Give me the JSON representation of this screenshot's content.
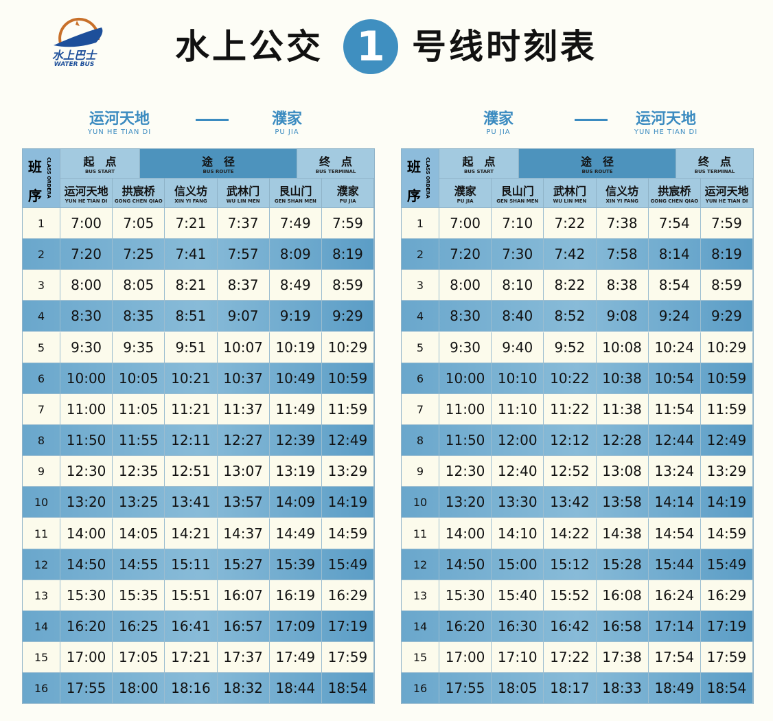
{
  "header": {
    "logo_text": "水上巴士",
    "logo_en": "WATER BUS",
    "title_left": "水上公交",
    "line_number": "1",
    "title_right": "号线时刻表"
  },
  "colors": {
    "accent": "#3f8fc0",
    "row_blue": "#6aa7cc",
    "row_cream": "#fcfbec"
  },
  "tables": [
    {
      "from": {
        "cn": "运河天地",
        "en": "YUN HE TIAN DI"
      },
      "to": {
        "cn": "濮家",
        "en": "PU JIA"
      },
      "seq_label": "班",
      "seq_label2": "序",
      "seq_en": "CLASS ORDERA",
      "start": {
        "cn": "起　点",
        "en": "BUS START"
      },
      "route": {
        "cn": "途　径",
        "en": "BUS ROUTE"
      },
      "terminal": {
        "cn": "终　点",
        "en": "BUS TERMINAL"
      },
      "stations": [
        {
          "cn": "运河天地",
          "en": "YUN HE TIAN DI"
        },
        {
          "cn": "拱宸桥",
          "en": "GONG CHEN QIAO"
        },
        {
          "cn": "信义坊",
          "en": "XIN YI FANG"
        },
        {
          "cn": "武林门",
          "en": "WU LIN MEN"
        },
        {
          "cn": "艮山门",
          "en": "GEN SHAN MEN"
        },
        {
          "cn": "濮家",
          "en": "PU JIA"
        }
      ],
      "rows": [
        [
          "1",
          "7:00",
          "7:05",
          "7:21",
          "7:37",
          "7:49",
          "7:59"
        ],
        [
          "2",
          "7:20",
          "7:25",
          "7:41",
          "7:57",
          "8:09",
          "8:19"
        ],
        [
          "3",
          "8:00",
          "8:05",
          "8:21",
          "8:37",
          "8:49",
          "8:59"
        ],
        [
          "4",
          "8:30",
          "8:35",
          "8:51",
          "9:07",
          "9:19",
          "9:29"
        ],
        [
          "5",
          "9:30",
          "9:35",
          "9:51",
          "10:07",
          "10:19",
          "10:29"
        ],
        [
          "6",
          "10:00",
          "10:05",
          "10:21",
          "10:37",
          "10:49",
          "10:59"
        ],
        [
          "7",
          "11:00",
          "11:05",
          "11:21",
          "11:37",
          "11:49",
          "11:59"
        ],
        [
          "8",
          "11:50",
          "11:55",
          "12:11",
          "12:27",
          "12:39",
          "12:49"
        ],
        [
          "9",
          "12:30",
          "12:35",
          "12:51",
          "13:07",
          "13:19",
          "13:29"
        ],
        [
          "10",
          "13:20",
          "13:25",
          "13:41",
          "13:57",
          "14:09",
          "14:19"
        ],
        [
          "11",
          "14:00",
          "14:05",
          "14:21",
          "14:37",
          "14:49",
          "14:59"
        ],
        [
          "12",
          "14:50",
          "14:55",
          "15:11",
          "15:27",
          "15:39",
          "15:49"
        ],
        [
          "13",
          "15:30",
          "15:35",
          "15:51",
          "16:07",
          "16:19",
          "16:29"
        ],
        [
          "14",
          "16:20",
          "16:25",
          "16:41",
          "16:57",
          "17:09",
          "17:19"
        ],
        [
          "15",
          "17:00",
          "17:05",
          "17:21",
          "17:37",
          "17:49",
          "17:59"
        ],
        [
          "16",
          "17:55",
          "18:00",
          "18:16",
          "18:32",
          "18:44",
          "18:54"
        ]
      ]
    },
    {
      "from": {
        "cn": "濮家",
        "en": "PU JIA"
      },
      "to": {
        "cn": "运河天地",
        "en": "YUN HE TIAN DI"
      },
      "seq_label": "班",
      "seq_label2": "序",
      "seq_en": "CLASS ORDERA",
      "start": {
        "cn": "起　点",
        "en": "BUS START"
      },
      "route": {
        "cn": "途　径",
        "en": "BUS ROUTE"
      },
      "terminal": {
        "cn": "终　点",
        "en": "BUS TERMINAL"
      },
      "stations": [
        {
          "cn": "濮家",
          "en": "PU JIA"
        },
        {
          "cn": "艮山门",
          "en": "GEN SHAN MEN"
        },
        {
          "cn": "武林门",
          "en": "WU LIN MEN"
        },
        {
          "cn": "信义坊",
          "en": "XIN YI FANG"
        },
        {
          "cn": "拱宸桥",
          "en": "GONG CHEN QIAO"
        },
        {
          "cn": "运河天地",
          "en": "YUN HE TIAN DI"
        }
      ],
      "rows": [
        [
          "1",
          "7:00",
          "7:10",
          "7:22",
          "7:38",
          "7:54",
          "7:59"
        ],
        [
          "2",
          "7:20",
          "7:30",
          "7:42",
          "7:58",
          "8:14",
          "8:19"
        ],
        [
          "3",
          "8:00",
          "8:10",
          "8:22",
          "8:38",
          "8:54",
          "8:59"
        ],
        [
          "4",
          "8:30",
          "8:40",
          "8:52",
          "9:08",
          "9:24",
          "9:29"
        ],
        [
          "5",
          "9:30",
          "9:40",
          "9:52",
          "10:08",
          "10:24",
          "10:29"
        ],
        [
          "6",
          "10:00",
          "10:10",
          "10:22",
          "10:38",
          "10:54",
          "10:59"
        ],
        [
          "7",
          "11:00",
          "11:10",
          "11:22",
          "11:38",
          "11:54",
          "11:59"
        ],
        [
          "8",
          "11:50",
          "12:00",
          "12:12",
          "12:28",
          "12:44",
          "12:49"
        ],
        [
          "9",
          "12:30",
          "12:40",
          "12:52",
          "13:08",
          "13:24",
          "13:29"
        ],
        [
          "10",
          "13:20",
          "13:30",
          "13:42",
          "13:58",
          "14:14",
          "14:19"
        ],
        [
          "11",
          "14:00",
          "14:10",
          "14:22",
          "14:38",
          "14:54",
          "14:59"
        ],
        [
          "12",
          "14:50",
          "15:00",
          "15:12",
          "15:28",
          "15:44",
          "15:49"
        ],
        [
          "13",
          "15:30",
          "15:40",
          "15:52",
          "16:08",
          "16:24",
          "16:29"
        ],
        [
          "14",
          "16:20",
          "16:30",
          "16:42",
          "16:58",
          "17:14",
          "17:19"
        ],
        [
          "15",
          "17:00",
          "17:10",
          "17:22",
          "17:38",
          "17:54",
          "17:59"
        ],
        [
          "16",
          "17:55",
          "18:05",
          "18:17",
          "18:33",
          "18:49",
          "18:54"
        ]
      ]
    }
  ]
}
